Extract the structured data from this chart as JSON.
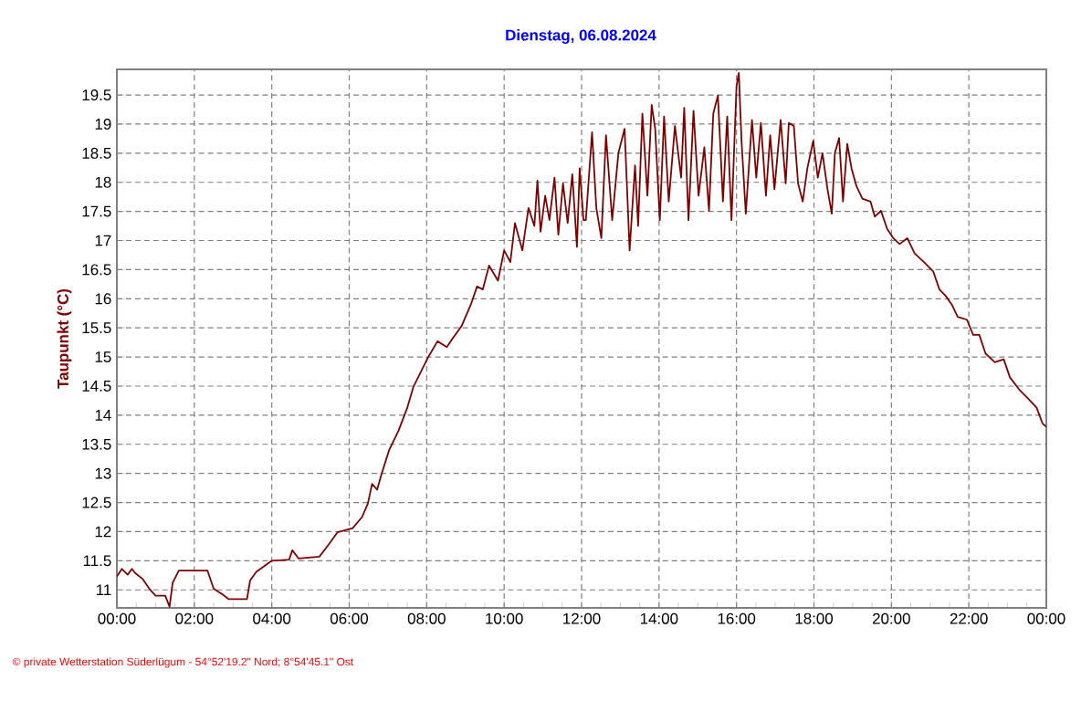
{
  "chart_data": {
    "type": "line",
    "title": "Dienstag, 06.08.2024",
    "ylabel": "Taupunkt  (°C)",
    "annotations": [
      "© private Wetterstation Süderlügum - 54°52'19.2\" Nord; 8°54'45.1\" Ost"
    ],
    "xlim": [
      0,
      24
    ],
    "ylim": [
      10.69,
      19.94
    ],
    "xticks": [
      {
        "value": 0,
        "label": "00:00"
      },
      {
        "value": 2,
        "label": "02:00"
      },
      {
        "value": 4,
        "label": "04:00"
      },
      {
        "value": 6,
        "label": "06:00"
      },
      {
        "value": 8,
        "label": "08:00"
      },
      {
        "value": 10,
        "label": "10:00"
      },
      {
        "value": 12,
        "label": "12:00"
      },
      {
        "value": 14,
        "label": "14:00"
      },
      {
        "value": 16,
        "label": "16:00"
      },
      {
        "value": 18,
        "label": "18:00"
      },
      {
        "value": 20,
        "label": "20:00"
      },
      {
        "value": 22,
        "label": "22:00"
      },
      {
        "value": 24,
        "label": "00:00"
      }
    ],
    "yticks": [
      11,
      11.5,
      12,
      12.5,
      13,
      13.5,
      14,
      14.5,
      15,
      15.5,
      16,
      16.5,
      17,
      17.5,
      18,
      18.5,
      19,
      19.5
    ],
    "grid": true,
    "marker": "none",
    "line_style": "solid",
    "x": [
      0,
      0.13,
      0.28,
      0.39,
      0.47,
      0.66,
      0.86,
      1.0,
      1.25,
      1.36,
      1.44,
      1.6,
      2.34,
      2.5,
      2.73,
      2.89,
      3.36,
      3.44,
      3.6,
      4.0,
      4.45,
      4.53,
      4.69,
      5.23,
      5.47,
      5.7,
      6.09,
      6.33,
      6.48,
      6.59,
      6.72,
      6.83,
      7.03,
      7.27,
      7.5,
      7.66,
      7.89,
      8.05,
      8.28,
      8.52,
      8.67,
      8.9,
      9.14,
      9.3,
      9.45,
      9.61,
      9.84,
      10.0,
      10.16,
      10.28,
      10.47,
      10.63,
      10.78,
      10.86,
      10.94,
      11.06,
      11.17,
      11.3,
      11.4,
      11.52,
      11.64,
      11.76,
      11.88,
      11.95,
      12.05,
      12.11,
      12.27,
      12.38,
      12.51,
      12.63,
      12.79,
      12.95,
      13.11,
      13.24,
      13.38,
      13.46,
      13.57,
      13.7,
      13.81,
      13.9,
      14.02,
      14.13,
      14.25,
      14.41,
      14.57,
      14.65,
      14.76,
      14.89,
      15.02,
      15.17,
      15.29,
      15.4,
      15.52,
      15.65,
      15.76,
      15.87,
      16.0,
      16.06,
      16.13,
      16.24,
      16.4,
      16.51,
      16.63,
      16.76,
      16.87,
      16.98,
      17.14,
      17.27,
      17.35,
      17.48,
      17.59,
      17.71,
      17.83,
      17.98,
      18.1,
      18.22,
      18.35,
      18.46,
      18.54,
      18.65,
      18.75,
      18.86,
      18.97,
      19.1,
      19.25,
      19.46,
      19.57,
      19.73,
      19.89,
      20.05,
      20.21,
      20.41,
      20.6,
      20.84,
      21.08,
      21.24,
      21.4,
      21.56,
      21.71,
      21.95,
      22.11,
      22.27,
      22.43,
      22.67,
      22.9,
      23.06,
      23.3,
      23.54,
      23.75,
      23.9,
      24.0
    ],
    "series": [
      {
        "color": "#800000",
        "values": [
          11.23,
          11.36,
          11.26,
          11.36,
          11.29,
          11.19,
          11.0,
          10.9,
          10.9,
          10.71,
          11.12,
          11.33,
          11.33,
          11.02,
          10.92,
          10.84,
          10.84,
          11.16,
          11.31,
          11.5,
          11.52,
          11.68,
          11.54,
          11.57,
          11.78,
          11.99,
          12.06,
          12.25,
          12.48,
          12.82,
          12.72,
          12.98,
          13.4,
          13.73,
          14.13,
          14.49,
          14.8,
          15.01,
          15.27,
          15.17,
          15.32,
          15.53,
          15.9,
          16.21,
          16.16,
          16.57,
          16.31,
          16.83,
          16.63,
          17.3,
          16.83,
          17.56,
          17.25,
          18.03,
          17.15,
          17.77,
          17.35,
          18.08,
          17.1,
          17.98,
          17.3,
          18.14,
          16.89,
          18.24,
          17.35,
          17.35,
          18.86,
          17.56,
          17.04,
          18.81,
          17.35,
          18.5,
          18.92,
          16.83,
          18.29,
          17.25,
          19.18,
          17.77,
          19.33,
          18.92,
          17.35,
          19.13,
          17.67,
          18.97,
          18.08,
          19.28,
          17.35,
          19.23,
          17.77,
          18.6,
          17.51,
          19.18,
          19.49,
          17.67,
          19.13,
          17.35,
          19.65,
          19.88,
          18.71,
          17.46,
          19.07,
          18.08,
          19.02,
          17.77,
          18.81,
          17.88,
          19.07,
          17.98,
          19.02,
          18.97,
          17.98,
          17.67,
          18.24,
          18.71,
          18.08,
          18.5,
          17.88,
          17.46,
          18.5,
          18.76,
          17.67,
          18.66,
          18.24,
          17.93,
          17.72,
          17.67,
          17.41,
          17.51,
          17.2,
          17.04,
          16.94,
          17.04,
          16.78,
          16.63,
          16.47,
          16.16,
          16.05,
          15.9,
          15.69,
          15.64,
          15.38,
          15.38,
          15.06,
          14.91,
          14.96,
          14.65,
          14.44,
          14.28,
          14.13,
          13.86,
          13.8
        ]
      }
    ]
  }
}
